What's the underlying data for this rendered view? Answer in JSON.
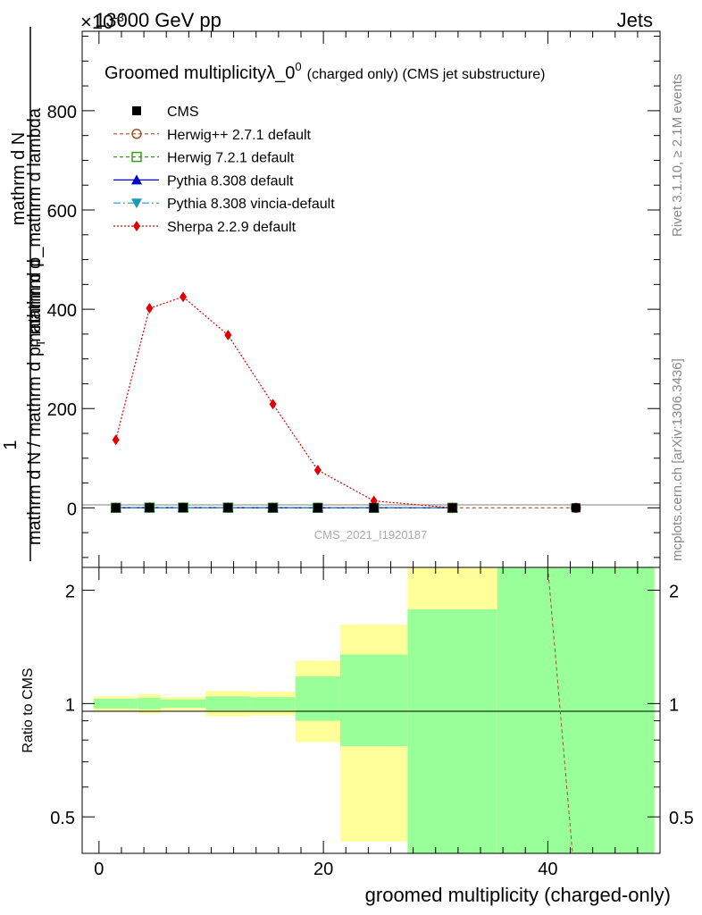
{
  "header": {
    "energy_label": "13000 GeV pp",
    "process_label": "Jets",
    "exponent_label": "×10",
    "exponent_power": "-3"
  },
  "side_labels": {
    "rivet": "Rivet 3.1.10, ≥ 2.1M events",
    "mcplots": "mcplots.cern.ch [arXiv:1306.3436]"
  },
  "main_plot": {
    "title": "Groomed multiplicityλ_0",
    "title_superscript": "0",
    "title_suffix": "(charged only) (CMS jet substructure)",
    "watermark": "CMS_2021_I1920187",
    "y_label_numerator": "1",
    "y_label_line1": "mathrm d N / mathrm d p",
    "y_label_sub": "T",
    "y_label_line2": "mathrm d",
    "y_label_top_a": "mathrm d",
    "y_label_top_b": "N",
    "y_label_top_c": "mathrm d p_mathrm d lambda",
    "y_label_top_sub": "T",
    "y_ticks": [
      "0",
      "200",
      "400",
      "600",
      "800"
    ]
  },
  "ratio_plot": {
    "y_label": "Ratio to CMS",
    "y_ticks": [
      "0.5",
      "1",
      "2"
    ],
    "x_ticks": [
      "0",
      "20",
      "40"
    ],
    "x_label": "groomed multiplicity (charged-only)"
  },
  "legend": [
    {
      "label": "CMS",
      "color": "#000000",
      "marker": "square-filled"
    },
    {
      "label": "Herwig++ 2.7.1 default",
      "color": "#a0522d",
      "marker": "circle-open"
    },
    {
      "label": "Herwig 7.2.1 default",
      "color": "#3a9a1a",
      "marker": "square-open"
    },
    {
      "label": "Pythia 8.308 default",
      "color": "#0000cc",
      "marker": "triangle-up"
    },
    {
      "label": "Pythia 8.308 vincia-default",
      "color": "#1a9ab8",
      "marker": "triangle-down"
    },
    {
      "label": "Sherpa 2.2.9 default",
      "color": "#e00000",
      "marker": "diamond"
    }
  ],
  "chart_data": {
    "type": "line",
    "title": "Groomed multiplicityλ_0^0 (charged only) (CMS jet substructure)",
    "xlabel": "groomed multiplicity (charged-only)",
    "ylabel": "1 / mathrm d N / mathrm d p_T mathrm d ... mathrm dN / mathrm d p_T mathrm d lambda",
    "xlim": [
      -1.5,
      50
    ],
    "ylim": [
      -120,
      960
    ],
    "y_scale_factor": "×10^-3",
    "grid": false,
    "legend_position": "top-left",
    "x": [
      1.5,
      4.5,
      7.5,
      11.5,
      15.5,
      19.5,
      24.5,
      31.5,
      42.5
    ],
    "series": [
      {
        "name": "CMS",
        "values": [
          0.1,
          0.4,
          0.4,
          0.35,
          0.2,
          0.08,
          0.02,
          0.002,
          0.0
        ]
      },
      {
        "name": "Herwig++ 2.7.1 default",
        "values": [
          0.1,
          0.4,
          0.4,
          0.35,
          0.2,
          0.08,
          0.02,
          0.002,
          0.0
        ]
      },
      {
        "name": "Herwig 7.2.1 default",
        "values": [
          0.1,
          0.4,
          0.4,
          0.35,
          0.2,
          0.08,
          0.02,
          0.002,
          null
        ]
      },
      {
        "name": "Pythia 8.308 default",
        "values": [
          0.1,
          0.4,
          0.4,
          0.35,
          0.2,
          0.08,
          0.02,
          0.002,
          null
        ]
      },
      {
        "name": "Pythia 8.308 vincia-default",
        "values": [
          0.1,
          0.4,
          0.4,
          0.35,
          0.2,
          0.08,
          0.02,
          0.002,
          null
        ]
      },
      {
        "name": "Sherpa 2.2.9 default",
        "values": [
          137,
          402,
          425,
          348,
          209,
          76,
          14,
          0,
          null
        ]
      }
    ],
    "ratio": {
      "ylabel": "Ratio to CMS",
      "ylim": [
        0.4,
        2.3
      ],
      "log_scale": true,
      "bands": [
        {
          "x0": -0.5,
          "x1": 3.5,
          "y_lo": 0.955,
          "y_hi": 1.045,
          "stat_lo": 0.97,
          "stat_hi": 1.03
        },
        {
          "x0": 3.5,
          "x1": 5.5,
          "y_lo": 0.94,
          "y_hi": 1.06,
          "stat_lo": 0.965,
          "stat_hi": 1.035
        },
        {
          "x0": 5.5,
          "x1": 9.5,
          "y_lo": 0.96,
          "y_hi": 1.04,
          "stat_lo": 0.975,
          "stat_hi": 1.025
        },
        {
          "x0": 9.5,
          "x1": 13.5,
          "y_lo": 0.925,
          "y_hi": 1.08,
          "stat_lo": 0.96,
          "stat_hi": 1.045
        },
        {
          "x0": 13.5,
          "x1": 17.5,
          "y_lo": 0.93,
          "y_hi": 1.075,
          "stat_lo": 0.96,
          "stat_hi": 1.04
        },
        {
          "x0": 17.5,
          "x1": 21.5,
          "y_lo": 0.79,
          "y_hi": 1.3,
          "stat_lo": 0.9,
          "stat_hi": 1.18
        },
        {
          "x0": 21.5,
          "x1": 27.5,
          "y_lo": 0.43,
          "y_hi": 1.62,
          "stat_lo": 0.77,
          "stat_hi": 1.35
        },
        {
          "x0": 27.5,
          "x1": 35.5,
          "y_lo": 0.35,
          "y_hi": 2.3,
          "stat_lo": 0.35,
          "stat_hi": 1.78
        },
        {
          "x0": 35.5,
          "x1": 49.5,
          "y_lo": 0.35,
          "y_hi": 2.3,
          "stat_lo": 0.35,
          "stat_hi": 2.3
        }
      ],
      "herwig_ratio_line": {
        "x0": 40.0,
        "y0": 2.3,
        "x1": 42.2,
        "y1": 0.4
      }
    }
  },
  "colors": {
    "band_outer": "#ffff99",
    "band_inner": "#99ff99"
  }
}
